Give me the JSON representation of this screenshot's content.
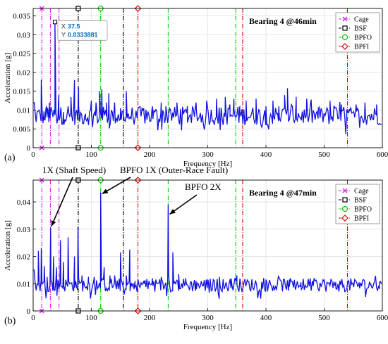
{
  "chart_data": [
    {
      "type": "line",
      "panel_label": "(a)",
      "title": "Bearing 4 @46min",
      "xlabel": "Frequency [Hz]",
      "ylabel": "Acceleration [g]",
      "xlim": [
        0,
        600
      ],
      "ylim": [
        0,
        0.037
      ],
      "xticks": [
        "0",
        "100",
        "200",
        "300",
        "400",
        "500",
        "600"
      ],
      "yticks": [
        "0",
        "0.005",
        "0.01",
        "0.015",
        "0.02",
        "0.025",
        "0.03",
        "0.035"
      ],
      "ytick_values": [
        0,
        0.005,
        0.01,
        0.015,
        0.02,
        0.025,
        0.03,
        0.035
      ],
      "grid": true,
      "legend_position": "top-right",
      "datatip": {
        "x_label": "X",
        "x_value": "37.5",
        "y_label": "Y",
        "y_value": "0.0333881",
        "x": 37.5,
        "y": 0.0333881
      },
      "series": [
        {
          "name": "Spectrum",
          "color": "#1010e0",
          "peaks": [
            [
              14,
              0.018
            ],
            [
              19,
              0.0075
            ],
            [
              23,
              0.011
            ],
            [
              25,
              0.0105
            ],
            [
              28,
              0.012
            ],
            [
              37.5,
              0.0333881
            ],
            [
              44,
              0.014
            ],
            [
              52,
              0.0095
            ],
            [
              60,
              0.011
            ],
            [
              65,
              0.0135
            ],
            [
              71,
              0.018
            ],
            [
              78,
              0.016
            ],
            [
              90,
              0.009
            ],
            [
              100,
              0.0125
            ],
            [
              108,
              0.012
            ],
            [
              114,
              0.015
            ],
            [
              118,
              0.0155
            ],
            [
              126,
              0.012
            ],
            [
              130,
              0.0145
            ],
            [
              140,
              0.012
            ],
            [
              150,
              0.0105
            ],
            [
              160,
              0.015
            ],
            [
              170,
              0.0105
            ],
            [
              190,
              0.0105
            ],
            [
              205,
              0.011
            ],
            [
              220,
              0.012
            ],
            [
              228,
              0.011
            ],
            [
              247,
              0.012
            ],
            [
              265,
              0.011
            ],
            [
              280,
              0.012
            ],
            [
              298,
              0.0125
            ],
            [
              315,
              0.013
            ],
            [
              330,
              0.0135
            ],
            [
              338,
              0.0115
            ],
            [
              345,
              0.013
            ],
            [
              355,
              0.011
            ],
            [
              366,
              0.0125
            ],
            [
              383,
              0.013
            ],
            [
              400,
              0.011
            ],
            [
              412,
              0.0125
            ],
            [
              422,
              0.011
            ],
            [
              432,
              0.014
            ],
            [
              437,
              0.0158
            ],
            [
              452,
              0.0135
            ],
            [
              470,
              0.013
            ],
            [
              490,
              0.0105
            ],
            [
              510,
              0.0125
            ],
            [
              530,
              0.0115
            ],
            [
              543,
              0.0103
            ],
            [
              555,
              0.0115
            ],
            [
              570,
              0.012
            ],
            [
              590,
              0.0115
            ]
          ]
        }
      ],
      "markers": [
        {
          "name": "Cage",
          "color": "#e020e0",
          "lines": [
            14.8,
            29.6,
            44.4
          ],
          "labels_at": [
            14.8
          ]
        },
        {
          "name": "BSF",
          "color": "#000000",
          "lines": [
            77.5,
            155
          ],
          "labels_at": [
            77.5
          ]
        },
        {
          "name": "BPFO",
          "color": "#00cc00",
          "lines": [
            116,
            232,
            348
          ],
          "labels_at": [
            116
          ]
        },
        {
          "name": "BPFI",
          "color": "#e00000",
          "lines": [
            180,
            360,
            540
          ],
          "labels_at": [
            180
          ]
        }
      ],
      "legend": [
        "Cage",
        "BSF",
        "BPFO",
        "BPFI"
      ]
    },
    {
      "type": "line",
      "panel_label": "(b)",
      "title": "Bearing 4 @47min",
      "xlabel": "Frequency [Hz]",
      "ylabel": "Acceleration [g]",
      "xlim": [
        0,
        600
      ],
      "ylim": [
        0,
        0.048
      ],
      "xticks": [
        "0",
        "100",
        "200",
        "300",
        "400",
        "500",
        "600"
      ],
      "yticks": [
        "0",
        "0.01",
        "0.02",
        "0.03",
        "0.04"
      ],
      "ytick_values": [
        0,
        0.01,
        0.02,
        0.03,
        0.04
      ],
      "grid": true,
      "legend_position": "top-right",
      "annotations": [
        {
          "text": "1X (Shaft Speed)",
          "x": 30,
          "y": 0.0305
        },
        {
          "text": "BPFO 1X (Outer-Race Fault)",
          "x": 116,
          "y": 0.0435
        },
        {
          "text": "BPFO 2X",
          "x": 232,
          "y": 0.036
        }
      ],
      "series": [
        {
          "name": "Spectrum",
          "color": "#1010e0",
          "peaks": [
            [
              9,
              0.022
            ],
            [
              14,
              0.023
            ],
            [
              19,
              0.0165
            ],
            [
              24,
              0.0125
            ],
            [
              30,
              0.0305
            ],
            [
              35,
              0.02
            ],
            [
              40,
              0.016
            ],
            [
              47,
              0.026
            ],
            [
              52,
              0.018
            ],
            [
              60,
              0.027
            ],
            [
              71,
              0.02
            ],
            [
              77,
              0.031
            ],
            [
              84,
              0.013
            ],
            [
              95,
              0.0125
            ],
            [
              105,
              0.0125
            ],
            [
              116,
              0.0435
            ],
            [
              122,
              0.016
            ],
            [
              132,
              0.013
            ],
            [
              140,
              0.013
            ],
            [
              150,
              0.0215
            ],
            [
              160,
              0.013
            ],
            [
              166,
              0.0225
            ],
            [
              175,
              0.011
            ],
            [
              190,
              0.011
            ],
            [
              205,
              0.012
            ],
            [
              220,
              0.0125
            ],
            [
              232,
              0.039
            ],
            [
              240,
              0.0215
            ],
            [
              250,
              0.0135
            ],
            [
              262,
              0.012
            ],
            [
              280,
              0.011
            ],
            [
              300,
              0.0115
            ],
            [
              320,
              0.0125
            ],
            [
              340,
              0.012
            ],
            [
              350,
              0.013
            ],
            [
              368,
              0.0115
            ],
            [
              382,
              0.011
            ],
            [
              400,
              0.0115
            ],
            [
              420,
              0.011
            ],
            [
              440,
              0.0115
            ],
            [
              460,
              0.0105
            ],
            [
              480,
              0.011
            ],
            [
              500,
              0.0115
            ],
            [
              520,
              0.0105
            ],
            [
              545,
              0.0095
            ],
            [
              560,
              0.0105
            ],
            [
              580,
              0.01
            ],
            [
              595,
              0.0105
            ]
          ]
        }
      ],
      "markers": [
        {
          "name": "Cage",
          "color": "#e020e0",
          "lines": [
            14.8,
            29.6,
            44.4
          ],
          "labels_at": [
            14.8
          ]
        },
        {
          "name": "BSF",
          "color": "#000000",
          "lines": [
            77.5,
            155
          ],
          "labels_at": [
            77.5
          ]
        },
        {
          "name": "BPFO",
          "color": "#00cc00",
          "lines": [
            116,
            232,
            348
          ],
          "labels_at": [
            116
          ]
        },
        {
          "name": "BPFI",
          "color": "#e00000",
          "lines": [
            180,
            360,
            540
          ],
          "labels_at": [
            180
          ]
        }
      ],
      "legend": [
        "Cage",
        "BSF",
        "BPFO",
        "BPFI"
      ]
    }
  ]
}
